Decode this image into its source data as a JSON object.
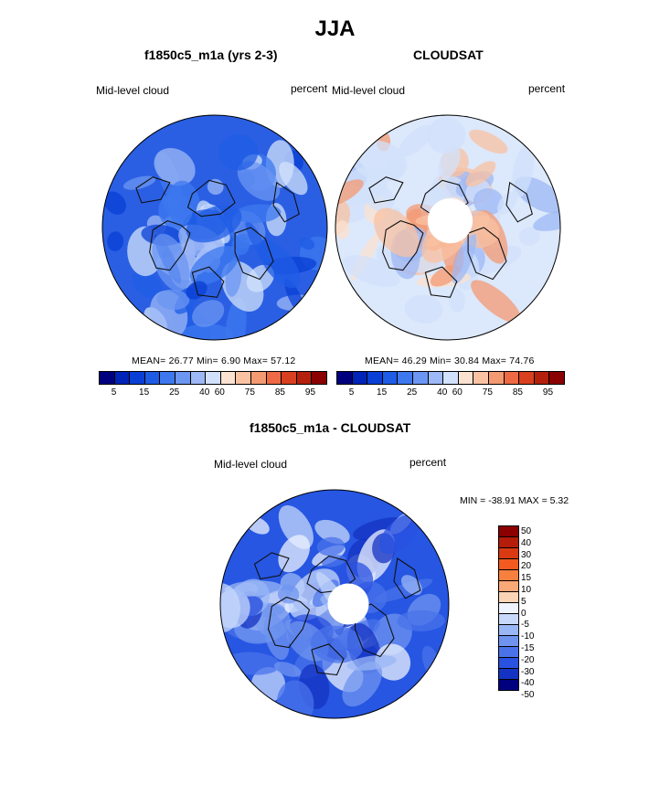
{
  "title": "JJA",
  "panels": [
    {
      "title": "f1850c5_m1a (yrs 2-3)",
      "variable": "Mid-level cloud",
      "units": "percent",
      "stats": "MEAN=  26.77  Min=   6.90  Max=  57.12",
      "colorbar_ticks": [
        "5",
        "15",
        "25",
        "40",
        "60",
        "75",
        "85",
        "95"
      ]
    },
    {
      "title": "CLOUDSAT",
      "variable": "Mid-level cloud",
      "units": "percent",
      "stats": "MEAN=  46.29  Min=  30.84  Max=  74.76",
      "colorbar_ticks": [
        "5",
        "15",
        "25",
        "40",
        "60",
        "75",
        "85",
        "95"
      ]
    }
  ],
  "diff": {
    "title": "f1850c5_m1a - CLOUDSAT",
    "variable": "Mid-level cloud",
    "units": "percent",
    "stats": "MIN = -38.91 MAX =   5.32",
    "colorbar_ticks": [
      "50",
      "40",
      "30",
      "20",
      "15",
      "10",
      "5",
      "0",
      "-5",
      "-10",
      "-15",
      "-20",
      "-30",
      "-40",
      "-50"
    ]
  },
  "colors": {
    "abs_scale": [
      "#00007f",
      "#0024b8",
      "#0a3fd6",
      "#1f5ce6",
      "#3d78ef",
      "#6b96f2",
      "#9db8f6",
      "#d2e1fb",
      "#fbe2d0",
      "#f9c2a2",
      "#f49a72",
      "#ee6a45",
      "#d9401f",
      "#b5200c",
      "#8b0000"
    ],
    "diff_scale": [
      "#8b0000",
      "#b51c0a",
      "#d93a12",
      "#f25a1f",
      "#f7803f",
      "#f9a877",
      "#fbd4b6",
      "#eef3ff",
      "#c7d8fb",
      "#9ab7f5",
      "#6f94ef",
      "#4a73ea",
      "#2a52e0",
      "#1433c2",
      "#00007f"
    ],
    "model_base": "#2a5fe4",
    "obs_base": "#dce8fb",
    "diff_base": "#2656e2"
  }
}
